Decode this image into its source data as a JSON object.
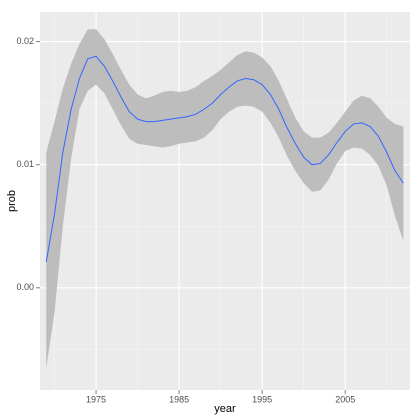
{
  "chart_data": {
    "type": "smooth-ribbon",
    "x_label": "year",
    "y_label": "prob",
    "x": [
      1969,
      1970,
      1971,
      1972,
      1973,
      1974,
      1975,
      1976,
      1977,
      1978,
      1979,
      1980,
      1981,
      1982,
      1983,
      1984,
      1985,
      1986,
      1987,
      1988,
      1989,
      1990,
      1991,
      1992,
      1993,
      1994,
      1995,
      1996,
      1997,
      1998,
      1999,
      2000,
      2001,
      2002,
      2003,
      2004,
      2005,
      2006,
      2007,
      2008,
      2009,
      2010,
      2011,
      2012
    ],
    "series": [
      {
        "color": "#3366ff",
        "values": [
          0.0021,
          0.006,
          0.011,
          0.0145,
          0.017,
          0.0186,
          0.0188,
          0.018,
          0.0168,
          0.0155,
          0.0143,
          0.0137,
          0.0135,
          0.0135,
          0.0136,
          0.0137,
          0.0138,
          0.0139,
          0.0141,
          0.0145,
          0.015,
          0.0157,
          0.0163,
          0.0168,
          0.017,
          0.0169,
          0.0165,
          0.0157,
          0.0145,
          0.013,
          0.0117,
          0.0106,
          0.01,
          0.0101,
          0.0108,
          0.0118,
          0.0127,
          0.0133,
          0.0134,
          0.0131,
          0.0123,
          0.011,
          0.0095,
          0.0085
        ],
        "lower": [
          -0.0065,
          -0.002,
          0.005,
          0.0105,
          0.0145,
          0.016,
          0.0165,
          0.0158,
          0.0145,
          0.0132,
          0.0121,
          0.0117,
          0.0116,
          0.0115,
          0.0114,
          0.0115,
          0.0117,
          0.0118,
          0.0119,
          0.0122,
          0.0128,
          0.0137,
          0.0143,
          0.0147,
          0.0148,
          0.0147,
          0.0143,
          0.0134,
          0.0122,
          0.0107,
          0.0095,
          0.0085,
          0.0078,
          0.0079,
          0.0088,
          0.0101,
          0.0111,
          0.0114,
          0.0113,
          0.0108,
          0.0099,
          0.0083,
          0.0058,
          0.0038
        ],
        "upper": [
          0.011,
          0.0135,
          0.0162,
          0.0182,
          0.0198,
          0.021,
          0.021,
          0.0202,
          0.019,
          0.0177,
          0.0165,
          0.0157,
          0.0154,
          0.0156,
          0.0159,
          0.016,
          0.0159,
          0.016,
          0.0163,
          0.0168,
          0.0172,
          0.0177,
          0.0183,
          0.0189,
          0.0192,
          0.0191,
          0.0187,
          0.018,
          0.0168,
          0.0153,
          0.0138,
          0.0127,
          0.0122,
          0.0122,
          0.0126,
          0.0134,
          0.0143,
          0.0152,
          0.0156,
          0.0154,
          0.0147,
          0.0138,
          0.0133,
          0.0131
        ],
        "band_color": "#bdbdbd"
      }
    ],
    "xlim": [
      1968.25,
      2012.8
    ],
    "ylim": [
      -0.0083,
      0.0224
    ],
    "xticks": [
      1975,
      1985,
      1995,
      2005
    ],
    "yticks": [
      {
        "value": 0,
        "label": "0.00"
      },
      {
        "value": 0.01,
        "label": "0.01"
      },
      {
        "value": 0.02,
        "label": "0.02"
      }
    ],
    "minor_xticks": [
      1970,
      1980,
      1990,
      2000,
      2010
    ],
    "minor_yticks": [
      -0.005,
      0.005,
      0.015
    ],
    "grid": true,
    "panel_color": "#ebebeb"
  }
}
